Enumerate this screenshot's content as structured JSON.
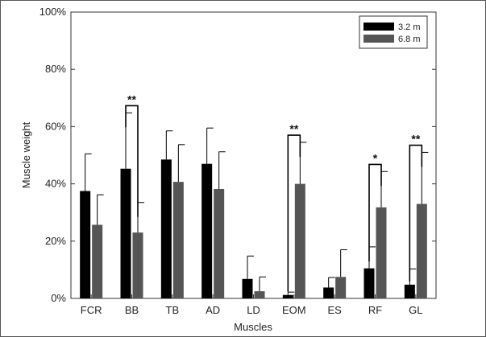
{
  "chart_data": {
    "type": "bar",
    "title": "",
    "xlabel": "Muscles",
    "ylabel": "Muscle weight",
    "ylim": [
      0,
      100
    ],
    "yticks": [
      "0%",
      "20%",
      "40%",
      "60%",
      "80%",
      "100%"
    ],
    "categories": [
      "FCR",
      "BB",
      "TB",
      "AD",
      "LD",
      "EOM",
      "ES",
      "RF",
      "GL"
    ],
    "series": [
      {
        "name": "3.2 m",
        "color": "#000000",
        "values": [
          37.5,
          45.3,
          48.5,
          47.0,
          6.8,
          1.2,
          3.8,
          10.5,
          4.8
        ],
        "errors": [
          13,
          19.5,
          10,
          12.5,
          8,
          1.0,
          3.5,
          7.5,
          5.5
        ]
      },
      {
        "name": "6.8 m",
        "color": "#555555",
        "values": [
          25.7,
          23.0,
          40.7,
          38.2,
          2.5,
          40.0,
          7.5,
          31.8,
          33.0
        ],
        "errors": [
          10.5,
          10.5,
          13,
          13,
          5,
          14.5,
          9.5,
          12.5,
          18
        ]
      }
    ],
    "significance": [
      {
        "category": "BB",
        "label": "**"
      },
      {
        "category": "EOM",
        "label": "**"
      },
      {
        "category": "RF",
        "label": "*"
      },
      {
        "category": "GL",
        "label": "**"
      }
    ],
    "legend_position": "top-right",
    "grid": false
  }
}
